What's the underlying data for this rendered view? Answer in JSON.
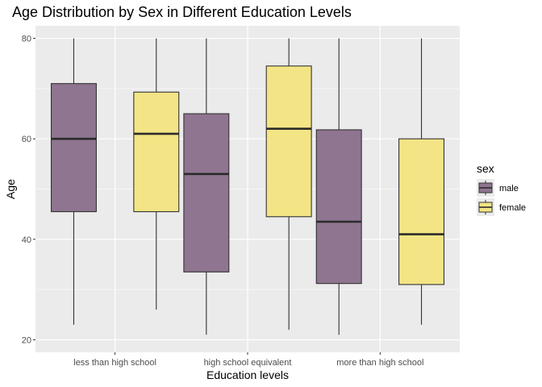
{
  "chart_data": {
    "type": "boxplot",
    "title": "Age Distribution by Sex in Different Education Levels",
    "xlabel": "Education levels",
    "ylabel": "Age",
    "categories": [
      "less than high school",
      "high school equivalent",
      "more than high school"
    ],
    "ylim": [
      17.5,
      82.5
    ],
    "yticks": [
      20,
      40,
      60,
      80
    ],
    "ytick_labels": [
      "20",
      "40",
      "60",
      "80"
    ],
    "grid": true,
    "legend": {
      "title": "sex",
      "position": "right",
      "items": [
        {
          "key": "male",
          "label": "male"
        },
        {
          "key": "female",
          "label": "female"
        }
      ]
    },
    "series": [
      {
        "name": "male",
        "color": "#8f7590",
        "boxes": [
          {
            "min": 23,
            "q1": 45.5,
            "median": 60,
            "q3": 71,
            "max": 80
          },
          {
            "min": 21,
            "q1": 33.5,
            "median": 53,
            "q3": 65,
            "max": 80
          },
          {
            "min": 21,
            "q1": 31.2,
            "median": 43.5,
            "q3": 61.8,
            "max": 80
          }
        ]
      },
      {
        "name": "female",
        "color": "#f3e585",
        "boxes": [
          {
            "min": 26,
            "q1": 45.5,
            "median": 61,
            "q3": 69.3,
            "max": 80
          },
          {
            "min": 22,
            "q1": 44.5,
            "median": 62,
            "q3": 74.5,
            "max": 80
          },
          {
            "min": 23,
            "q1": 31,
            "median": 41,
            "q3": 60,
            "max": 80
          }
        ]
      }
    ],
    "colors": {
      "panel": "#ebebeb",
      "grid": "#ffffff",
      "outline": "#333333",
      "median": "#2b2b2b"
    }
  }
}
